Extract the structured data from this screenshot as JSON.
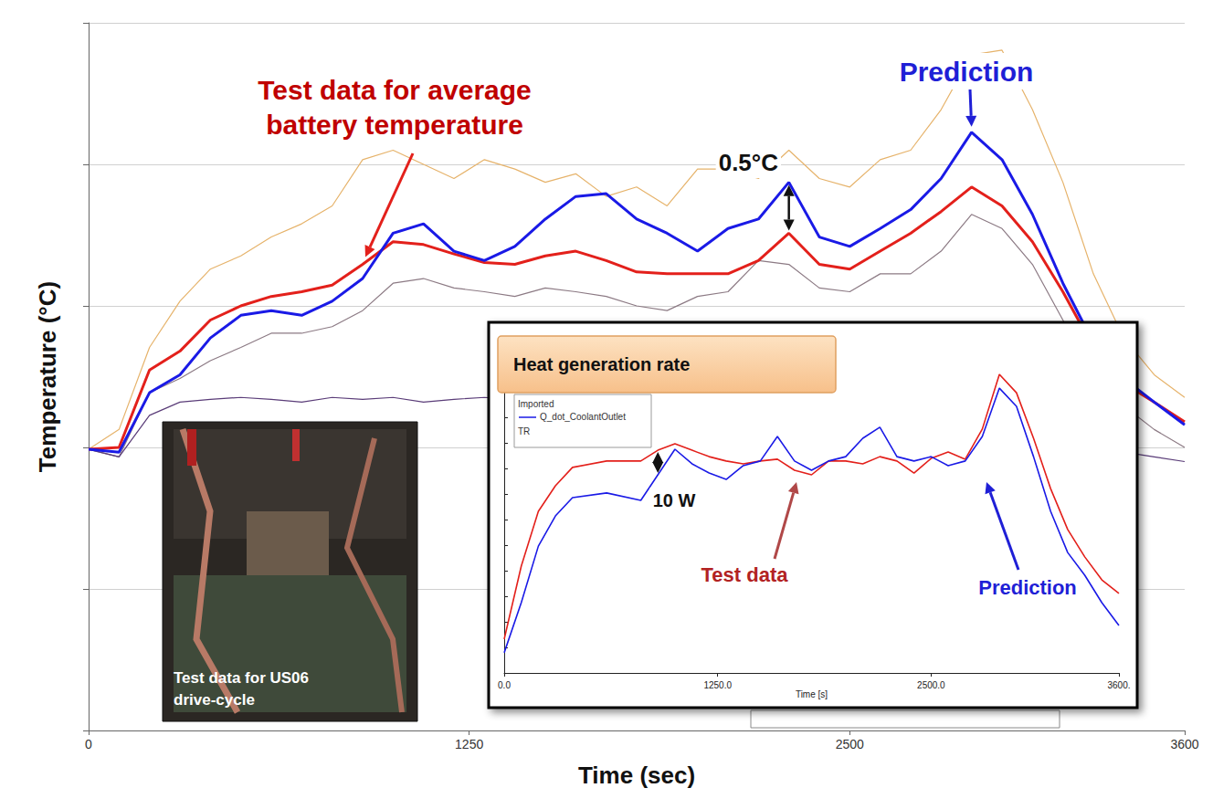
{
  "chart_data": [
    {
      "type": "line",
      "xlabel": "Time (sec)",
      "ylabel": "Temperature (°C)",
      "annotations": [
        "Test data for average battery temperature",
        "Prediction",
        "0.5°C"
      ],
      "photo_caption": "Test data for US06 drive-cycle",
      "x": [
        0,
        100,
        200,
        300,
        400,
        500,
        600,
        700,
        800,
        900,
        1000,
        1100,
        1200,
        1300,
        1400,
        1500,
        1600,
        1700,
        1800,
        1900,
        2000,
        2100,
        2200,
        2300,
        2400,
        2500,
        2600,
        2700,
        2800,
        2900,
        3000,
        3100,
        3200,
        3300,
        3400,
        3500,
        3600
      ],
      "series": [
        {
          "color": "#e6b36b",
          "values": [
            25.48,
            25.69,
            26.56,
            27.05,
            27.39,
            27.53,
            27.73,
            27.87,
            28.06,
            28.55,
            28.65,
            28.5,
            28.35,
            28.55,
            28.45,
            28.31,
            28.4,
            28.16,
            28.26,
            28.06,
            28.45,
            28.45,
            28.35,
            28.65,
            28.35,
            28.26,
            28.55,
            28.65,
            29.08,
            29.66,
            29.71,
            29.08,
            28.31,
            27.34,
            26.66,
            26.27,
            26.03
          ]
        },
        {
          "color": "#8c7a84",
          "values": [
            25.48,
            25.4,
            26.08,
            26.23,
            26.42,
            26.56,
            26.71,
            26.71,
            26.78,
            26.95,
            27.24,
            27.29,
            27.19,
            27.15,
            27.1,
            27.19,
            27.15,
            27.1,
            27.0,
            26.95,
            27.1,
            27.15,
            27.48,
            27.44,
            27.19,
            27.15,
            27.34,
            27.34,
            27.58,
            27.97,
            27.82,
            27.44,
            26.85,
            26.27,
            25.94,
            25.69,
            25.5
          ]
        },
        {
          "color": "#5a3c78",
          "values": [
            25.48,
            25.4,
            25.84,
            25.98,
            26.01,
            26.03,
            26.01,
            25.98,
            26.03,
            26.01,
            26.03,
            25.98,
            26.01,
            26.03,
            26.01,
            25.98,
            26.01,
            26.03,
            26.01,
            25.98,
            26.03,
            26.01,
            26.03,
            25.98,
            26.01,
            26.03,
            26.01,
            25.98,
            26.03,
            26.01,
            26.03,
            26.01,
            25.98,
            25.69,
            25.45,
            25.4,
            25.35
          ]
        },
        {
          "color": "#e3201b",
          "values": [
            25.48,
            25.5,
            26.32,
            26.52,
            26.85,
            27.0,
            27.1,
            27.15,
            27.22,
            27.44,
            27.68,
            27.65,
            27.55,
            27.46,
            27.44,
            27.53,
            27.58,
            27.48,
            27.36,
            27.34,
            27.34,
            27.34,
            27.48,
            27.77,
            27.44,
            27.39,
            27.58,
            27.77,
            28.0,
            28.26,
            28.06,
            27.68,
            27.15,
            26.56,
            26.18,
            25.98,
            25.77
          ]
        },
        {
          "color": "#1a1ae6",
          "values": [
            25.48,
            25.45,
            26.08,
            26.27,
            26.66,
            26.9,
            26.95,
            26.9,
            27.05,
            27.29,
            27.77,
            27.87,
            27.58,
            27.48,
            27.63,
            27.92,
            28.16,
            28.19,
            27.92,
            27.77,
            27.58,
            27.82,
            27.92,
            28.31,
            27.73,
            27.63,
            27.82,
            28.02,
            28.35,
            28.84,
            28.55,
            27.97,
            27.24,
            26.61,
            26.23,
            25.98,
            25.74
          ]
        }
      ],
      "xlim": [
        0,
        3600
      ],
      "xticks": [
        0,
        1250,
        2500,
        3600
      ],
      "ylim": [
        22.5,
        30
      ],
      "yticks": [
        22.5,
        24,
        25.5,
        27,
        28.5,
        30
      ],
      "tick_labels": "x",
      "grid": true
    },
    {
      "type": "line",
      "title": "Heat generation rate",
      "xlabel": "Time [s]",
      "legend_entries": [
        "Imported",
        "Q_dot_CoolantOutlet",
        "TR"
      ],
      "annotations": [
        "10 W",
        "Test data",
        "Prediction"
      ],
      "x": [
        0,
        100,
        200,
        300,
        400,
        600,
        800,
        900,
        1000,
        1100,
        1200,
        1300,
        1400,
        1500,
        1600,
        1700,
        1800,
        1900,
        2000,
        2100,
        2200,
        2300,
        2400,
        2500,
        2600,
        2700,
        2800,
        2900,
        3000,
        3100,
        3200,
        3300,
        3400,
        3500,
        3600
      ],
      "series": [
        {
          "color": "#e3201b",
          "values": [
            13.2,
            41.8,
            63.2,
            73.2,
            80.4,
            82.9,
            82.9,
            87.1,
            89.6,
            87.1,
            84.6,
            82.9,
            81.8,
            82.9,
            83.6,
            79.3,
            77.5,
            82.9,
            82.9,
            81.8,
            84.6,
            82.9,
            78.2,
            83.9,
            86.4,
            83.6,
            95.4,
            116.8,
            109.6,
            91.8,
            72.1,
            56.1,
            45.4,
            36.4,
            31.1
          ]
        },
        {
          "color": "#1a1ae6",
          "values": [
            7.9,
            27.5,
            49.6,
            61.4,
            68.6,
            70.4,
            67.5,
            77.5,
            87.5,
            81.8,
            78.2,
            75.7,
            81.1,
            82.9,
            92.5,
            82.9,
            79.3,
            82.9,
            84.6,
            91.8,
            96.1,
            84.6,
            82.9,
            84.6,
            81.1,
            82.9,
            92.5,
            111.4,
            104.3,
            84.6,
            63.2,
            47.1,
            38.2,
            27.5,
            18.6
          ]
        }
      ],
      "xlim": [
        0,
        3600
      ],
      "xticks": [
        {
          "value": 0,
          "label": "0.0"
        },
        {
          "value": 1250,
          "label": "1250.0"
        },
        {
          "value": 2500,
          "label": "2500.0"
        },
        {
          "value": 3600,
          "label": "3600."
        }
      ],
      "ylim": [
        0,
        130
      ],
      "yticks": [
        0,
        10,
        20,
        30,
        40,
        50,
        60,
        70,
        80,
        90,
        100,
        110,
        120,
        130
      ],
      "tick_labels": "x",
      "grid": false
    }
  ]
}
